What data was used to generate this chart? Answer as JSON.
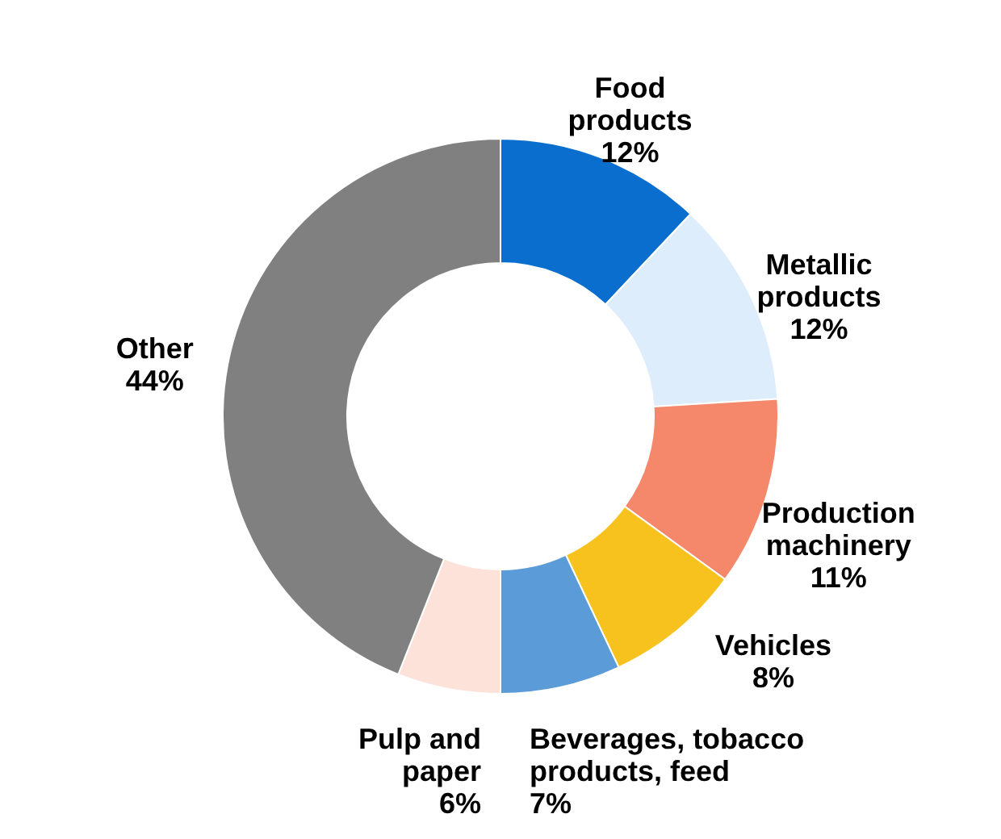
{
  "chart_data": {
    "type": "donut",
    "categories": [
      "Food products",
      "Metallic products",
      "Production machinery",
      "Vehicles",
      "Beverages, tobacco products, feed",
      "Pulp and paper",
      "Other"
    ],
    "values": [
      12,
      12,
      11,
      8,
      7,
      6,
      44
    ],
    "value_labels": [
      "12%",
      "12%",
      "11%",
      "8%",
      "7%",
      "6%",
      "44%"
    ],
    "colors": [
      "#0a6ecf",
      "#ddedfc",
      "#f5876a",
      "#f8c21e",
      "#5b9bd8",
      "#fde2da",
      "#808080"
    ]
  }
}
